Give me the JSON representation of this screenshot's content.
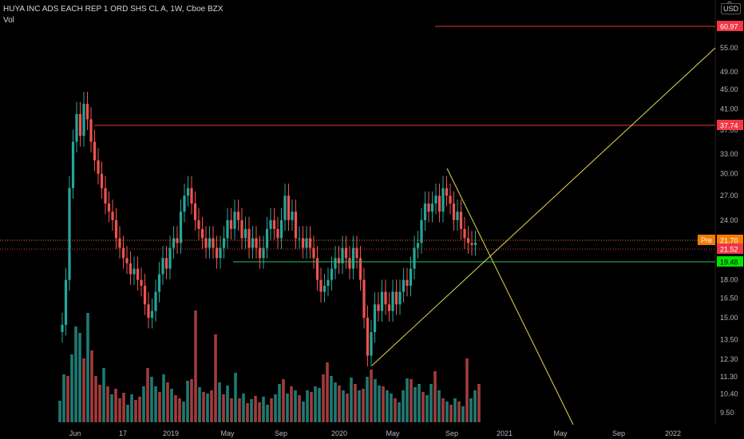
{
  "header": {
    "title": "HUYA INC ADS EACH REP 1 ORD SHS CL A, 1W, Cboe BZX",
    "volume_label": "Vol",
    "currency": "USD"
  },
  "price_axis": {
    "ticks": [
      "55.00",
      "49.00",
      "45.00",
      "41.00",
      "37.00",
      "33.00",
      "30.00",
      "27.00",
      "24.00",
      "18.00",
      "16.50",
      "15.00",
      "13.50",
      "12.30",
      "11.30",
      "10.40",
      "9.50"
    ]
  },
  "time_axis": {
    "labels": [
      "Jun",
      "17",
      "2019",
      "May",
      "Sep",
      "2020",
      "May",
      "Sep",
      "2021",
      "May",
      "Sep",
      "2022"
    ]
  },
  "price_labels": [
    {
      "text": "60.97",
      "color": "#f23645",
      "role": "resistance-line"
    },
    {
      "text": "37.74",
      "color": "#f23645",
      "role": "resistance-line"
    },
    {
      "text": "21.70",
      "color": "#f57c00",
      "role": "pre-market"
    },
    {
      "text": "21.52",
      "color": "#f23645",
      "role": "last-price"
    },
    {
      "text": "19.48",
      "color": "#00e600",
      "role": "support-line"
    }
  ],
  "pre_label": "Pre",
  "colors": {
    "up": "#26a69a",
    "down": "#ef5350",
    "vol_up": "#1f7a72",
    "vol_down": "#a33b3b",
    "resistance": "#e53935",
    "support": "#22c55e",
    "trend": "#e6d94b",
    "background": "#000000"
  },
  "chart_data": {
    "type": "candlestick",
    "symbol": "HUYA",
    "interval": "1W",
    "price_scale": "log",
    "horizontal_lines": [
      60.97,
      37.74,
      19.48
    ],
    "current_price": 21.52,
    "pre_market_price": 21.7,
    "closes": [
      14.5,
      18,
      28,
      35,
      40,
      36,
      42,
      39,
      35,
      32,
      30,
      28,
      26,
      25,
      24,
      22,
      21,
      20,
      19.5,
      18.5,
      19,
      18,
      17.5,
      16,
      15,
      15.5,
      17,
      18.5,
      20,
      19,
      21,
      22,
      21.5,
      25,
      27,
      28,
      26,
      24,
      23,
      22,
      21,
      22,
      21,
      20,
      21,
      22,
      24,
      23,
      25,
      24,
      22,
      23,
      21,
      22,
      21,
      20,
      21,
      23,
      24,
      23,
      22,
      24,
      27,
      24,
      25,
      22,
      22,
      21,
      22,
      21,
      20,
      18,
      17,
      17.5,
      18,
      19,
      20,
      19.5,
      21,
      20,
      19,
      21,
      20,
      18,
      15,
      12.5,
      14,
      16,
      15.5,
      17,
      16,
      15.5,
      17,
      16,
      17,
      18,
      17.5,
      19,
      21,
      21.5,
      24,
      26,
      25,
      26,
      27,
      25,
      28,
      27,
      26,
      24,
      25,
      23,
      22,
      21.5,
      21.3,
      21.52
    ],
    "volume_note": "weekly volume bars shown below price"
  }
}
